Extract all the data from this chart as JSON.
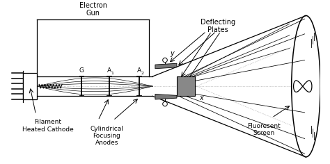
{
  "labels": {
    "electron_gun": "Electron\nGun",
    "deflecting_plates": "Deflecting\nPlates",
    "filament": "Filament\nHeated Cathode",
    "cylindrical": "Cylindrical\nFocusing\nAnodes",
    "fluorescent": "Fluoresent\nScreen",
    "G": "G",
    "A1": "A",
    "A1_sub": "1",
    "A2": "A",
    "A2_sub": "2",
    "x": "x",
    "y": "y"
  },
  "colors": {
    "black": "#000000",
    "gray": "#999999",
    "white": "#ffffff",
    "plate_gray": "#777777",
    "light_gray": "#bbbbbb"
  }
}
